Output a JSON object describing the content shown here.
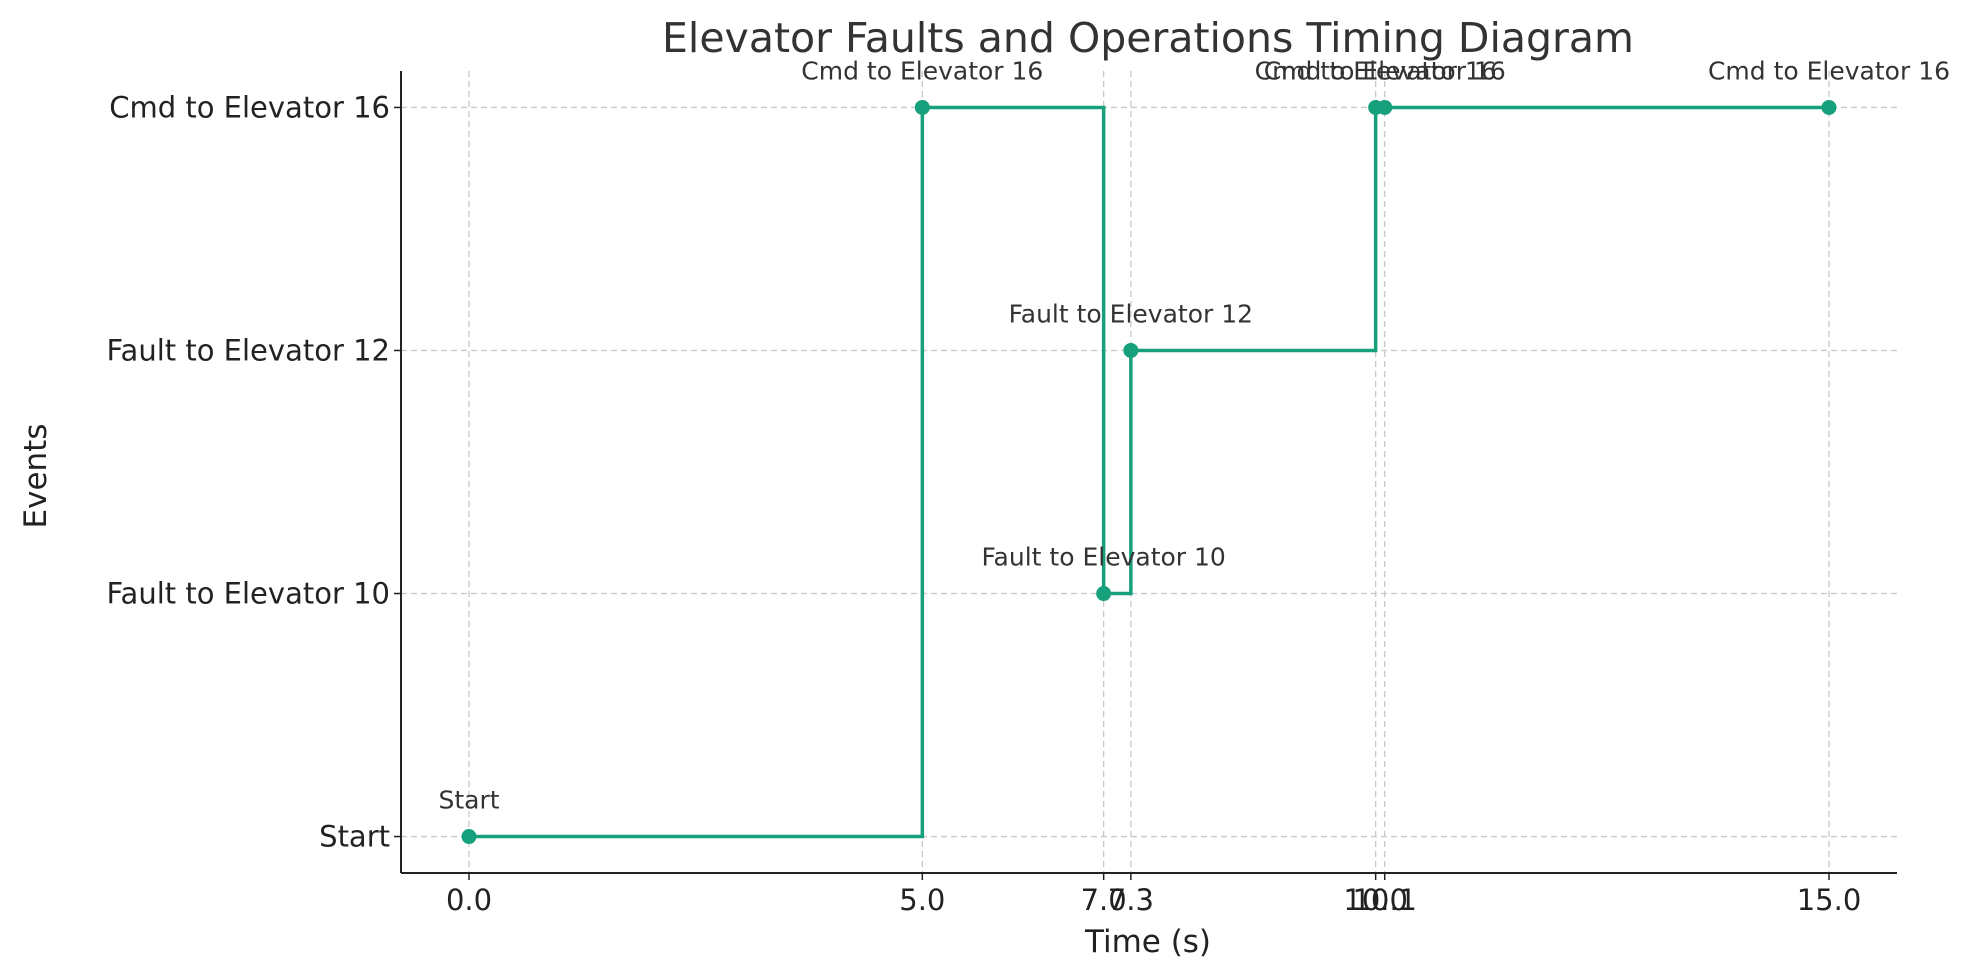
{
  "chart_data": {
    "type": "line",
    "step": "post",
    "title": "Elevator Faults and Operations Timing Diagram",
    "xlabel": "Time (s)",
    "ylabel": "Events",
    "xlim": [
      -0.75,
      15.75
    ],
    "ylim": [
      -0.15,
      3.15
    ],
    "grid": true,
    "line_color": "#16a07c",
    "y_categories": [
      "Start",
      "Fault to Elevator 10",
      "Fault to Elevator 12",
      "Cmd to Elevator 16"
    ],
    "x_tick_labels": [
      "0.0",
      "5.0",
      "7.0",
      "7.3",
      "10.0",
      "10.1",
      "15.0"
    ],
    "x_ticks": [
      0.0,
      5.0,
      7.0,
      7.3,
      10.0,
      10.1,
      15.0
    ],
    "series": [
      {
        "x": [
          0.0,
          5.0,
          7.0,
          7.3,
          10.0,
          10.1,
          15.0
        ],
        "y": [
          "Start",
          "Cmd to Elevator 16",
          "Fault to Elevator 10",
          "Fault to Elevator 12",
          "Cmd to Elevator 16",
          "Cmd to Elevator 16",
          "Cmd to Elevator 16"
        ],
        "labels": [
          "Start",
          "Cmd to Elevator 16",
          "Fault to Elevator 10",
          "Fault to Elevator 12",
          "Cmd to Elevator 16",
          "Cmd to Elevator 16",
          "Cmd to Elevator 16"
        ]
      }
    ]
  }
}
